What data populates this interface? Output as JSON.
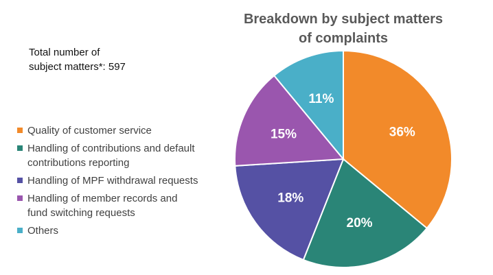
{
  "chart_data": {
    "type": "pie",
    "title": "Breakdown by subject matters of complaints",
    "title_lines": [
      "Breakdown by subject matters",
      "of complaints"
    ],
    "total_lines": [
      "Total number of",
      "subject matters*: 597"
    ],
    "legend_position": "left",
    "start_angle": "12 o'clock, clockwise",
    "slices": [
      {
        "label": "Quality of customer service",
        "value": 36,
        "display": "36%",
        "color": "#F28A2A"
      },
      {
        "label": "Handling of contributions and default contributions reporting",
        "value": 20,
        "display": "20%",
        "color": "#2A8577"
      },
      {
        "label": "Handling of MPF withdrawal requests",
        "value": 18,
        "display": "18%",
        "color": "#5551A4"
      },
      {
        "label": "Handling of member records and fund switching requests",
        "value": 15,
        "display": "15%",
        "color": "#9A56AE"
      },
      {
        "label": "Others",
        "value": 11,
        "display": "11%",
        "color": "#4AAFC8"
      }
    ]
  }
}
